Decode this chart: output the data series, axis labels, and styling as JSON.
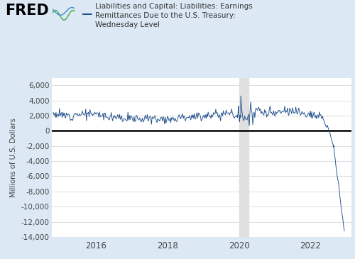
{
  "title_legend": "Liabilities and Capital: Liabilities: Earnings\nRemittances Due to the U.S. Treasury:\nWednesday Level",
  "ylabel": "Millions of U.S. Dollars",
  "line_color": "#1f4e8c",
  "background_color": "#dce9f5",
  "plot_bg_color": "#ffffff",
  "recession_color": "#e0e0e0",
  "recession_start": 2020.0,
  "recession_end": 2020.27,
  "ylim": [
    -14000,
    7000
  ],
  "xlim_start": 2014.75,
  "xlim_end": 2023.15,
  "yticks": [
    -14000,
    -12000,
    -10000,
    -8000,
    -6000,
    -4000,
    -2000,
    0,
    2000,
    4000,
    6000
  ],
  "xticks": [
    2016,
    2018,
    2020,
    2022
  ],
  "fred_text_color": "#000000",
  "zero_line_color": "#000000",
  "grid_color": "#d8d8d8",
  "tick_label_color": "#444444",
  "legend_dash_color": "#1f4e8c"
}
